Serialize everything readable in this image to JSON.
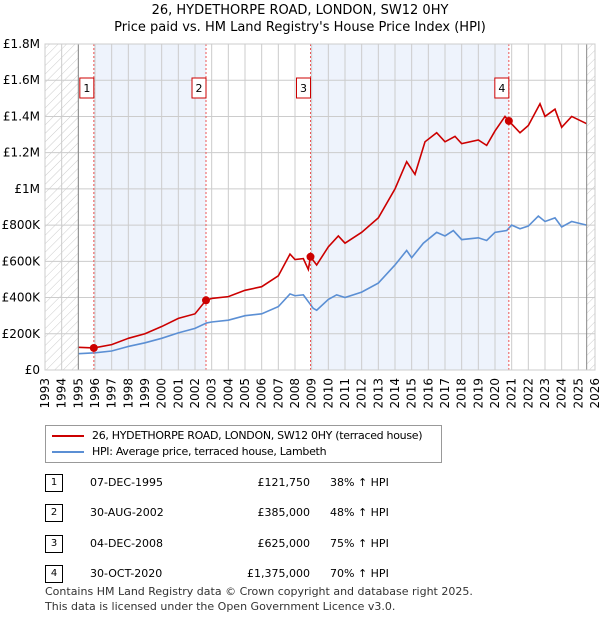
{
  "title_line1": "26, HYDETHORPE ROAD, LONDON, SW12 0HY",
  "title_line2": "Price paid vs. HM Land Registry's House Price Index (HPI)",
  "colors": {
    "property": "#cc0000",
    "hpi": "#5b8fd4",
    "shade": "#eef3fc"
  },
  "chart_data": {
    "type": "line",
    "title": "Price paid vs. HM Land Registry's House Price Index (HPI)",
    "xlim": [
      1993,
      2026
    ],
    "ylim": [
      0,
      1800000
    ],
    "x_ticks": [
      "1993",
      "1994",
      "1995",
      "1996",
      "1997",
      "1998",
      "1999",
      "2000",
      "2001",
      "2002",
      "2003",
      "2004",
      "2005",
      "2006",
      "2007",
      "2008",
      "2009",
      "2010",
      "2011",
      "2012",
      "2013",
      "2014",
      "2015",
      "2016",
      "2017",
      "2018",
      "2019",
      "2020",
      "2021",
      "2022",
      "2023",
      "2024",
      "2025",
      "2026"
    ],
    "y_ticks": [
      {
        "v": 0,
        "label": "£0"
      },
      {
        "v": 200000,
        "label": "£200K"
      },
      {
        "v": 400000,
        "label": "£400K"
      },
      {
        "v": 600000,
        "label": "£600K"
      },
      {
        "v": 800000,
        "label": "£800K"
      },
      {
        "v": 1000000,
        "label": "£1M"
      },
      {
        "v": 1200000,
        "label": "£1.2M"
      },
      {
        "v": 1400000,
        "label": "£1.4M"
      },
      {
        "v": 1600000,
        "label": "£1.6M"
      },
      {
        "v": 1800000,
        "label": "£1.8M"
      }
    ],
    "grid": true,
    "series": [
      {
        "name": "26, HYDETHORPE ROAD, LONDON, SW12 0HY (terraced house)",
        "x": [
          1995,
          1995.93,
          1997,
          1998,
          1999,
          2000,
          2001,
          2002,
          2002.66,
          2003,
          2004,
          2005,
          2006,
          2007,
          2007.7,
          2008,
          2008.5,
          2008.8,
          2008.93,
          2009.3,
          2010,
          2010.6,
          2011,
          2012,
          2013,
          2014,
          2014.7,
          2015.2,
          2015.8,
          2016.5,
          2017,
          2017.6,
          2018,
          2019,
          2019.5,
          2020,
          2020.6,
          2020.83,
          2021.5,
          2022,
          2022.7,
          2023,
          2023.6,
          2024,
          2024.6,
          2025.5
        ],
        "y": [
          125000,
          121750,
          140000,
          175000,
          200000,
          240000,
          285000,
          310000,
          385000,
          395000,
          405000,
          440000,
          460000,
          520000,
          640000,
          610000,
          615000,
          555000,
          625000,
          580000,
          680000,
          740000,
          700000,
          760000,
          840000,
          1000000,
          1150000,
          1080000,
          1260000,
          1310000,
          1260000,
          1290000,
          1250000,
          1270000,
          1240000,
          1320000,
          1400000,
          1375000,
          1310000,
          1350000,
          1470000,
          1400000,
          1440000,
          1340000,
          1400000,
          1360000
        ]
      },
      {
        "name": "HPI: Average price, terraced house, Lambeth",
        "x": [
          1995,
          1996,
          1997,
          1998,
          1999,
          2000,
          2001,
          2002,
          2002.7,
          2003,
          2004,
          2005,
          2006,
          2007,
          2007.7,
          2008,
          2008.5,
          2009.1,
          2009.3,
          2010,
          2010.5,
          2011,
          2012,
          2013,
          2014,
          2014.7,
          2015,
          2015.7,
          2016.5,
          2017,
          2017.5,
          2018,
          2019,
          2019.5,
          2020,
          2020.7,
          2021,
          2021.5,
          2022,
          2022.6,
          2023,
          2023.6,
          2024,
          2024.6,
          2025.5
        ],
        "y": [
          90000,
          95000,
          105000,
          130000,
          150000,
          175000,
          205000,
          230000,
          260000,
          265000,
          275000,
          300000,
          310000,
          350000,
          420000,
          410000,
          415000,
          340000,
          330000,
          390000,
          415000,
          400000,
          430000,
          480000,
          580000,
          660000,
          620000,
          700000,
          760000,
          740000,
          770000,
          720000,
          730000,
          715000,
          760000,
          770000,
          800000,
          780000,
          795000,
          850000,
          820000,
          840000,
          790000,
          820000,
          800000
        ]
      }
    ],
    "sales": [
      {
        "label": "1",
        "x": 1995.93,
        "y": 121750
      },
      {
        "label": "2",
        "x": 2002.66,
        "y": 385000
      },
      {
        "label": "3",
        "x": 2008.93,
        "y": 625000
      },
      {
        "label": "4",
        "x": 2020.83,
        "y": 1375000
      }
    ],
    "data_range": [
      1995,
      2025.5
    ],
    "legend_position": "bottom"
  },
  "legend": [
    "26, HYDETHORPE ROAD, LONDON, SW12 0HY (terraced house)",
    "HPI: Average price, terraced house, Lambeth"
  ],
  "transactions": [
    {
      "num": "1",
      "date": "07-DEC-1995",
      "price": "£121,750",
      "hpi": "38% ↑ HPI"
    },
    {
      "num": "2",
      "date": "30-AUG-2002",
      "price": "£385,000",
      "hpi": "48% ↑ HPI"
    },
    {
      "num": "3",
      "date": "04-DEC-2008",
      "price": "£625,000",
      "hpi": "75% ↑ HPI"
    },
    {
      "num": "4",
      "date": "30-OCT-2020",
      "price": "£1,375,000",
      "hpi": "70% ↑ HPI"
    }
  ],
  "footer1": "Contains HM Land Registry data © Crown copyright and database right 2025.",
  "footer2": "This data is licensed under the Open Government Licence v3.0."
}
